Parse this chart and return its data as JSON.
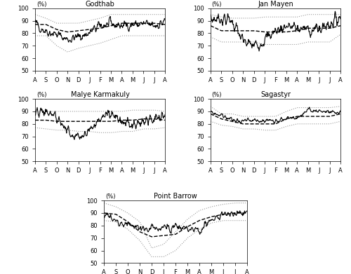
{
  "stations": [
    "Godthab",
    "Jan Mayen",
    "Malye Karmakuly",
    "Sagastyr",
    "Point Barrow"
  ],
  "month_labels": [
    "A",
    "S",
    "O",
    "N",
    "D",
    "J",
    "F",
    "M",
    "A",
    "M",
    "J",
    "J",
    "A"
  ],
  "n_months": 13,
  "ylim": [
    50,
    100
  ],
  "yticks": [
    50,
    60,
    70,
    80,
    90,
    100
  ],
  "godthab": {
    "ipy_monthly": [
      88,
      82,
      79,
      75,
      77,
      80,
      86,
      87,
      86,
      87,
      87,
      86,
      89
    ],
    "modern_monthly": [
      87,
      87,
      83,
      81,
      82,
      83,
      84,
      86,
      88,
      88,
      88,
      88,
      87
    ],
    "sd_upper_monthly": [
      95,
      92,
      88,
      88,
      88,
      90,
      92,
      95,
      95,
      95,
      95,
      95,
      95
    ],
    "sd_lower_monthly": [
      78,
      78,
      70,
      65,
      68,
      70,
      72,
      75,
      78,
      78,
      78,
      78,
      78
    ]
  },
  "jan_mayen": {
    "ipy_monthly": [
      91,
      92,
      90,
      73,
      70,
      75,
      82,
      86,
      84,
      83,
      83,
      88,
      93
    ],
    "modern_monthly": [
      86,
      82,
      82,
      82,
      82,
      81,
      81,
      81,
      82,
      84,
      84,
      84,
      86
    ],
    "sd_upper_monthly": [
      95,
      93,
      92,
      92,
      92,
      93,
      93,
      93,
      93,
      95,
      95,
      95,
      95
    ],
    "sd_lower_monthly": [
      77,
      73,
      73,
      73,
      73,
      71,
      71,
      71,
      71,
      73,
      73,
      73,
      79
    ]
  },
  "malye_karmakuly": {
    "ipy_monthly": [
      87,
      90,
      85,
      75,
      70,
      75,
      84,
      90,
      83,
      78,
      80,
      84,
      87
    ],
    "modern_monthly": [
      83,
      83,
      82,
      82,
      82,
      82,
      82,
      82,
      83,
      83,
      84,
      84,
      83
    ],
    "sd_upper_monthly": [
      90,
      90,
      90,
      90,
      90,
      90,
      90,
      90,
      90,
      91,
      91,
      91,
      90
    ],
    "sd_lower_monthly": [
      77,
      76,
      75,
      75,
      74,
      74,
      73,
      73,
      74,
      74,
      76,
      76,
      77
    ]
  },
  "sagastyr": {
    "ipy_monthly": [
      89,
      87,
      83,
      82,
      82,
      83,
      83,
      84,
      85,
      90,
      91,
      89,
      89
    ],
    "modern_monthly": [
      88,
      84,
      82,
      80,
      80,
      80,
      80,
      84,
      86,
      86,
      86,
      86,
      88
    ],
    "sd_upper_monthly": [
      94,
      88,
      88,
      86,
      86,
      86,
      86,
      90,
      93,
      93,
      93,
      93,
      94
    ],
    "sd_lower_monthly": [
      82,
      79,
      78,
      76,
      76,
      75,
      75,
      78,
      80,
      80,
      80,
      80,
      82
    ]
  },
  "point_barrow": {
    "ipy_monthly": [
      90,
      83,
      80,
      79,
      76,
      79,
      79,
      78,
      76,
      85,
      89,
      90,
      91
    ],
    "modern_monthly": [
      90,
      89,
      83,
      75,
      71,
      72,
      73,
      79,
      84,
      87,
      89,
      90,
      90
    ],
    "sd_upper_monthly": [
      98,
      95,
      90,
      83,
      62,
      65,
      75,
      85,
      92,
      95,
      97,
      98,
      98
    ],
    "sd_lower_monthly": [
      84,
      83,
      77,
      68,
      55,
      55,
      60,
      70,
      77,
      82,
      84,
      84,
      84
    ]
  }
}
